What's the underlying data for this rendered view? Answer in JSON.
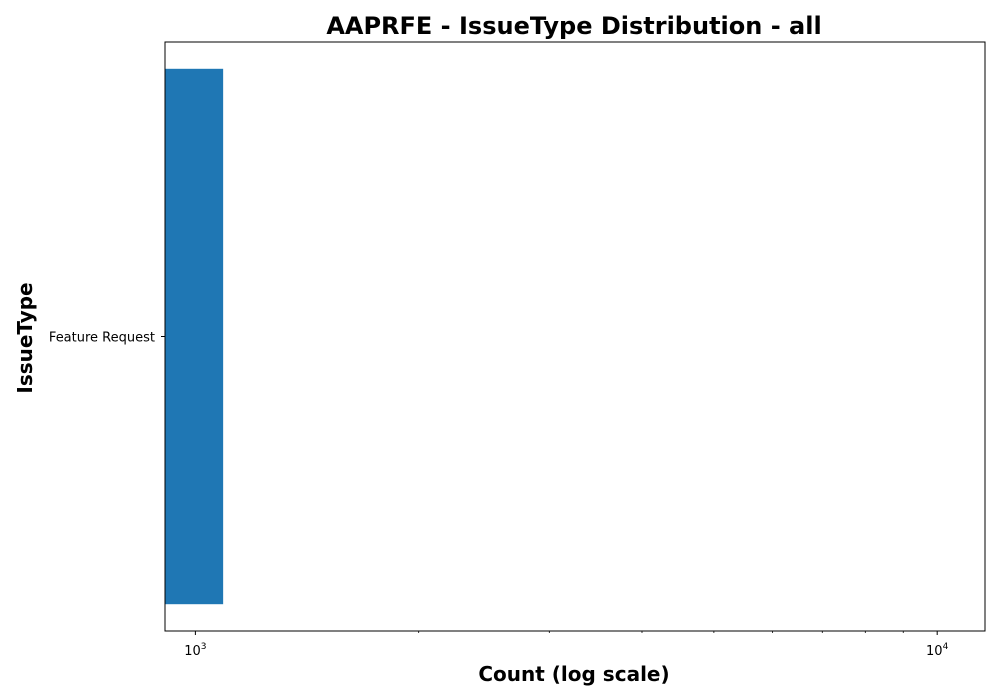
{
  "chart_data": {
    "type": "bar",
    "orientation": "horizontal",
    "title": "AAPRFE - IssueType Distribution - all",
    "xlabel": "Count (log scale)",
    "ylabel": "IssueType",
    "x_scale": "log",
    "xlim": [
      910,
      11600
    ],
    "x_ticks": [
      {
        "value": 1000,
        "base": "10",
        "exponent": "3"
      },
      {
        "value": 10000,
        "base": "10",
        "exponent": "4"
      }
    ],
    "categories": [
      "Feature Request"
    ],
    "values": [
      1090
    ],
    "bar_color": "#1f77b4",
    "grid": false,
    "legend": "none"
  }
}
